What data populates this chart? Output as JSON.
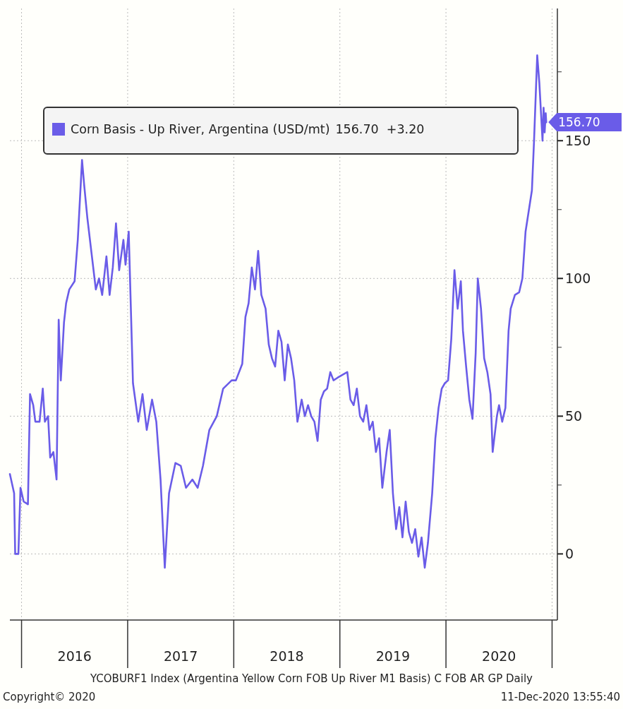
{
  "chart_data": {
    "type": "line",
    "xlim": [
      2015.89,
      2021.05
    ],
    "ylim": [
      -24,
      198
    ],
    "xticks": [
      {
        "value": 2016,
        "label": null
      },
      {
        "value": 2016.5,
        "label": "2016"
      },
      {
        "value": 2017,
        "label": null
      },
      {
        "value": 2017.5,
        "label": "2017"
      },
      {
        "value": 2018,
        "label": null
      },
      {
        "value": 2018.5,
        "label": "2018"
      },
      {
        "value": 2019,
        "label": null
      },
      {
        "value": 2019.5,
        "label": "2019"
      },
      {
        "value": 2020,
        "label": null
      },
      {
        "value": 2020.5,
        "label": "2020"
      },
      {
        "value": 2021,
        "label": null
      }
    ],
    "yticks": [
      0,
      {
        "value": 25,
        "label": null
      },
      50,
      {
        "value": 75,
        "label": null
      },
      100,
      {
        "value": 125,
        "label": null
      },
      150,
      {
        "value": 175,
        "label": null
      }
    ],
    "grid": true,
    "legend": "top left",
    "marker": "none",
    "line_style": "solid",
    "series": [
      {
        "name": "Corn Basis - Up River, Argentina (USD/mt)",
        "color": "#6a5ce8",
        "x": [
          2015.89,
          2015.93,
          2015.94,
          2015.97,
          2015.99,
          2016.02,
          2016.06,
          2016.08,
          2016.11,
          2016.13,
          2016.17,
          2016.2,
          2016.22,
          2016.25,
          2016.27,
          2016.3,
          2016.33,
          2016.35,
          2016.37,
          2016.4,
          2016.42,
          2016.45,
          2016.5,
          2016.53,
          2016.57,
          2016.59,
          2016.62,
          2016.66,
          2016.7,
          2016.73,
          2016.76,
          2016.8,
          2016.83,
          2016.86,
          2016.89,
          2016.92,
          2016.96,
          2016.98,
          2017.01,
          2017.05,
          2017.1,
          2017.14,
          2017.18,
          2017.23,
          2017.27,
          2017.31,
          2017.35,
          2017.39,
          2017.45,
          2017.5,
          2017.55,
          2017.61,
          2017.66,
          2017.71,
          2017.77,
          2017.84,
          2017.9,
          2017.98,
          2018.02,
          2018.05,
          2018.08,
          2018.11,
          2018.14,
          2018.17,
          2018.2,
          2018.23,
          2018.26,
          2018.3,
          2018.33,
          2018.36,
          2018.39,
          2018.42,
          2018.45,
          2018.48,
          2018.51,
          2018.54,
          2018.57,
          2018.6,
          2018.64,
          2018.67,
          2018.7,
          2018.73,
          2018.76,
          2018.79,
          2018.82,
          2018.85,
          2018.88,
          2018.91,
          2018.94,
          2018.98,
          2019.07,
          2019.1,
          2019.13,
          2019.16,
          2019.19,
          2019.22,
          2019.25,
          2019.28,
          2019.31,
          2019.34,
          2019.37,
          2019.4,
          2019.44,
          2019.47,
          2019.5,
          2019.53,
          2019.56,
          2019.59,
          2019.62,
          2019.65,
          2019.68,
          2019.71,
          2019.74,
          2019.77,
          2019.8,
          2019.83,
          2019.87,
          2019.9,
          2019.93,
          2019.96,
          2019.99,
          2020.02,
          2020.05,
          2020.08,
          2020.11,
          2020.14,
          2020.16,
          2020.19,
          2020.22,
          2020.25,
          2020.28,
          2020.3,
          2020.33,
          2020.36,
          2020.39,
          2020.42,
          2020.44,
          2020.48,
          2020.5,
          2020.53,
          2020.56,
          2020.59,
          2020.61,
          2020.65,
          2020.69,
          2020.72,
          2020.75,
          2020.79,
          2020.81,
          2020.83,
          2020.86,
          2020.88,
          2020.91,
          2020.92,
          2020.93,
          2020.94,
          2020.945
        ],
        "values": [
          29,
          22,
          0,
          0,
          24,
          19,
          18,
          58,
          54,
          48,
          48,
          60,
          48,
          50,
          35,
          37,
          27,
          85,
          63,
          84,
          91,
          96,
          99,
          114,
          143,
          134,
          122,
          109,
          96,
          100,
          94,
          108,
          94,
          104,
          120,
          103,
          114,
          105,
          117,
          62,
          48,
          58,
          45,
          56,
          48,
          27,
          -5,
          22,
          33,
          32,
          24,
          27,
          24,
          32,
          45,
          50,
          60,
          63,
          63,
          66,
          69,
          86,
          91,
          104,
          96,
          110,
          94,
          89,
          76,
          71,
          68,
          81,
          77,
          63,
          76,
          71,
          63,
          48,
          56,
          50,
          54,
          50,
          48,
          41,
          56,
          59,
          60,
          66,
          63,
          64,
          66,
          56,
          54,
          60,
          50,
          48,
          54,
          45,
          48,
          37,
          42,
          24,
          37,
          45,
          22,
          9,
          17,
          6,
          19,
          8,
          4,
          9,
          -1,
          6,
          -5,
          4,
          22,
          42,
          53,
          60,
          62,
          63,
          78,
          103,
          89,
          99,
          81,
          68,
          56,
          49,
          73,
          100,
          89,
          71,
          66,
          58,
          37,
          50,
          54,
          48,
          53,
          81,
          89,
          94,
          95,
          100,
          117,
          127,
          132,
          150,
          181,
          171,
          150,
          162,
          153,
          160,
          156.7
        ]
      }
    ],
    "annotations": [
      "156.70  +3.20",
      {
        "text": "156.70",
        "x": 2020.945,
        "y": 156.7
      },
      "YCOBURF1 Index (Argentina Yellow Corn FOB Up River M1 Basis) C FOB AR GP  Daily",
      "Copyright© 2020",
      "11-Dec-2020 13:55:40"
    ]
  }
}
